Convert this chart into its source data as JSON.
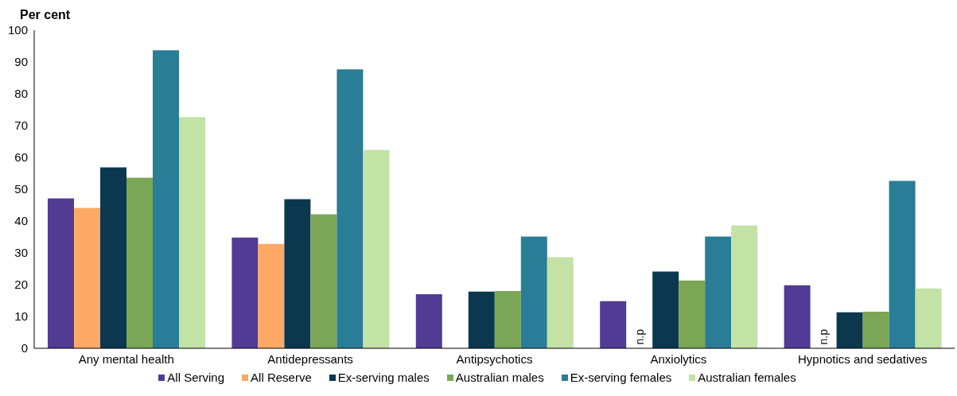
{
  "chart_data": {
    "type": "bar",
    "ylabel": "Per cent",
    "categories": [
      "Any mental health",
      "Antidepressants",
      "Antipsychotics",
      "Anxiolytics",
      "Hypnotics and sedatives"
    ],
    "series": [
      {
        "name": "All Serving",
        "color": "#513b95",
        "values": [
          47.1,
          34.8,
          17.0,
          14.8,
          19.8
        ]
      },
      {
        "name": "All Reserve",
        "color": "#fea966",
        "values": [
          44.1,
          32.8,
          null,
          null,
          null
        ],
        "value_labels": [
          null,
          null,
          null,
          "n.p",
          "n.p"
        ]
      },
      {
        "name": "Ex-serving males",
        "color": "#0b374f",
        "values": [
          56.9,
          46.9,
          17.8,
          24.1,
          11.3
        ]
      },
      {
        "name": "Australian males",
        "color": "#7ba655",
        "values": [
          53.6,
          42.1,
          18.0,
          21.3,
          11.5
        ]
      },
      {
        "name": "Ex-serving females",
        "color": "#297d96",
        "values": [
          93.7,
          87.7,
          35.1,
          35.1,
          52.6
        ]
      },
      {
        "name": "Australian females",
        "color": "#c3e2a5",
        "values": [
          72.7,
          62.4,
          28.6,
          38.6,
          18.8
        ]
      }
    ],
    "ylim": [
      0,
      100
    ],
    "yticks": [
      0,
      10,
      20,
      30,
      40,
      50,
      60,
      70,
      80,
      90,
      100
    ],
    "grid": false,
    "legend": "bottom"
  }
}
